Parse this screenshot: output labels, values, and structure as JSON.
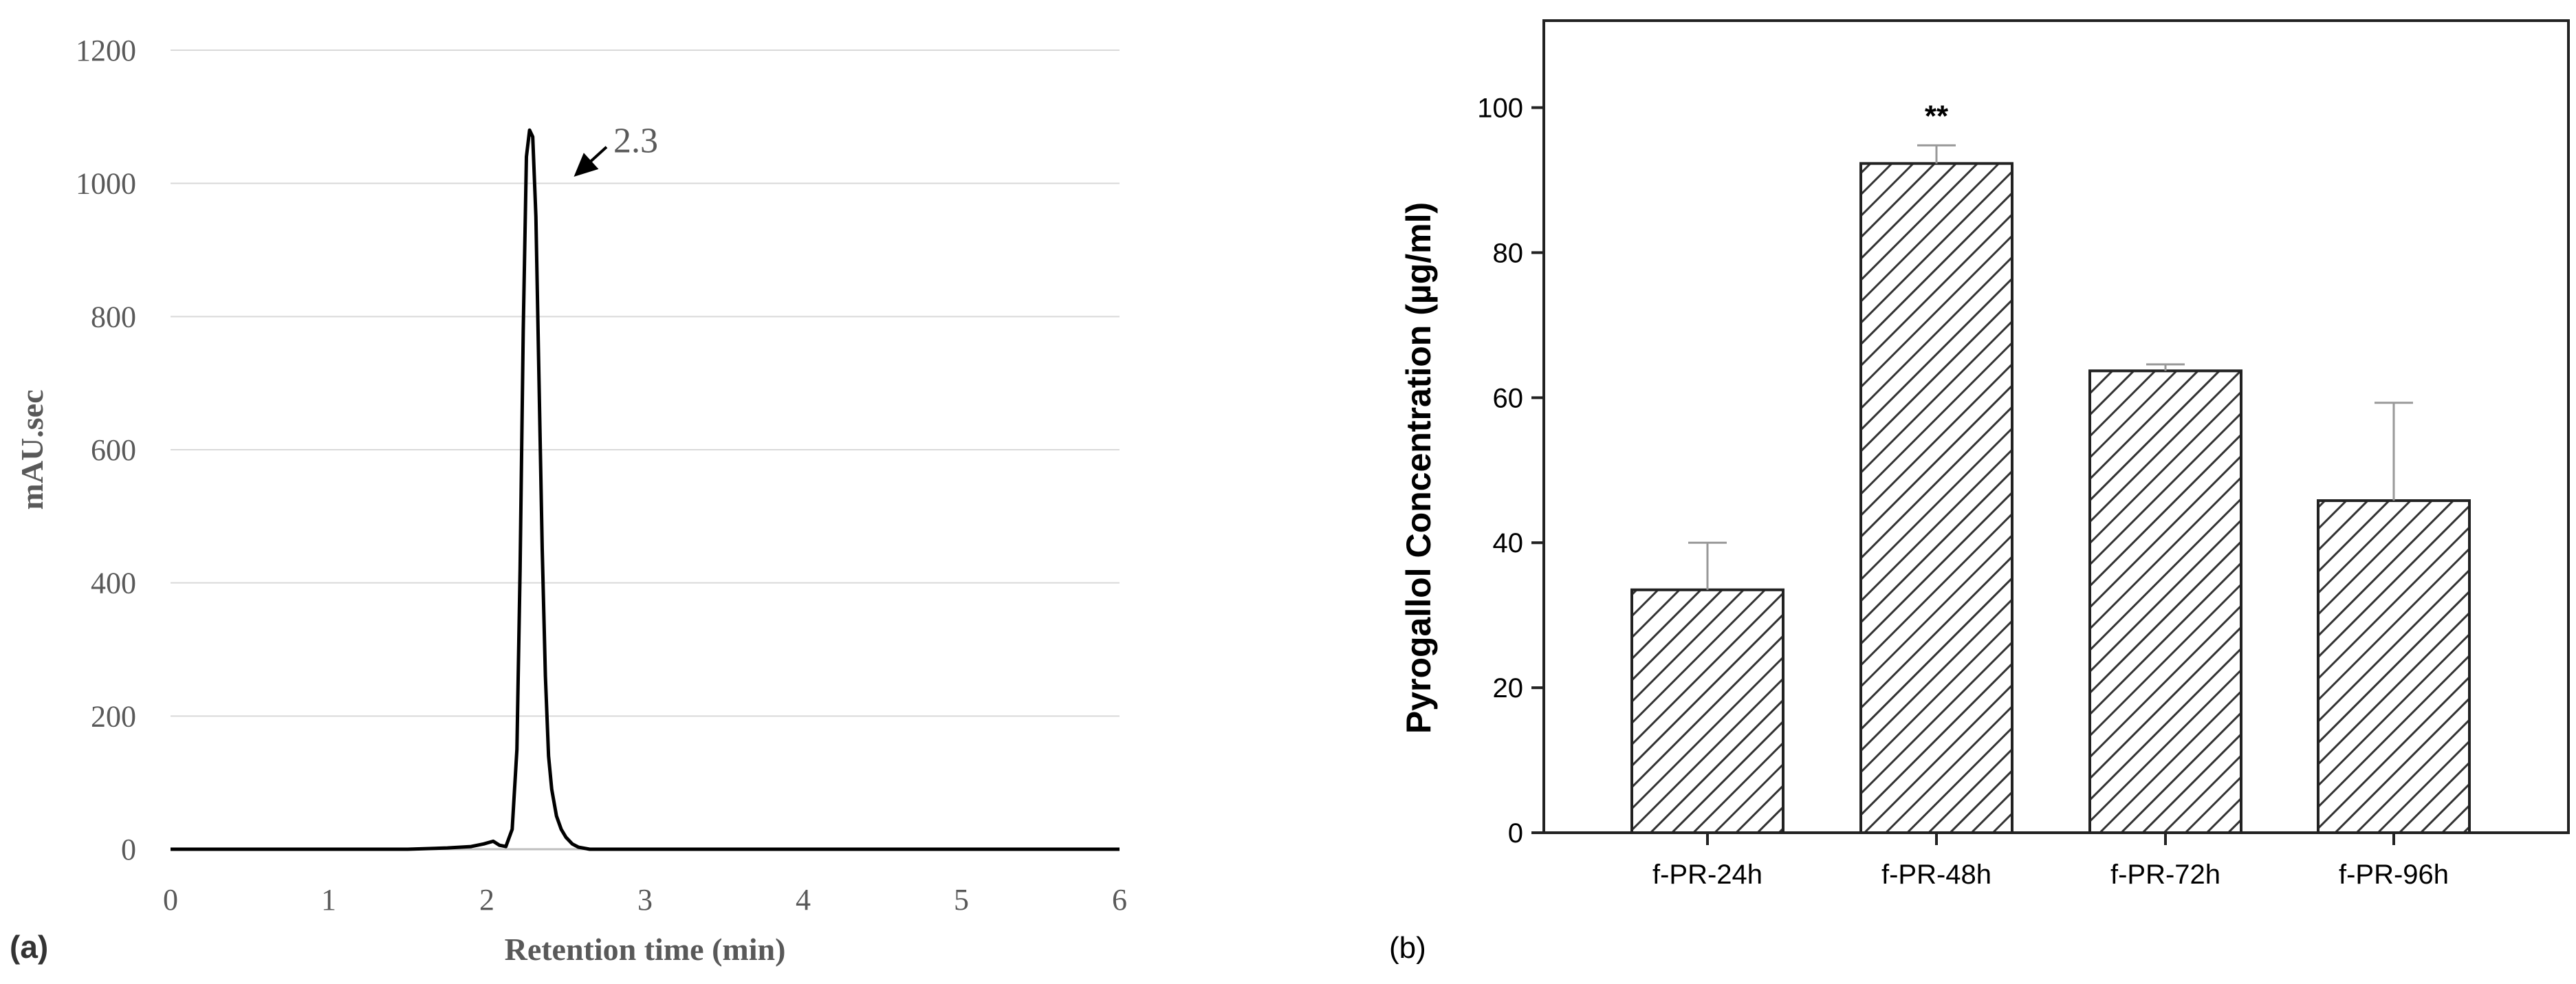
{
  "figure": {
    "panel_a_label": "(a)",
    "panel_b_label": "(b)"
  },
  "chart_data": [
    {
      "type": "line",
      "title": "",
      "xlabel": "Retention time (min)",
      "ylabel": "mAU.sec",
      "xlim": [
        0,
        6
      ],
      "ylim": [
        0,
        1200
      ],
      "xticks": [
        0,
        1,
        2,
        3,
        4,
        5,
        6
      ],
      "yticks": [
        0,
        200,
        400,
        600,
        800,
        1000,
        1200
      ],
      "grid": "horizontal",
      "annotation": {
        "text": "2.3",
        "arrow_to": [
          2.55,
          1010
        ],
        "label_at": [
          2.8,
          1065
        ]
      },
      "series": [
        {
          "color": "#000000",
          "x": [
            0.0,
            0.5,
            1.0,
            1.5,
            1.75,
            1.9,
            1.98,
            2.04,
            2.08,
            2.12,
            2.16,
            2.19,
            2.21,
            2.23,
            2.25,
            2.27,
            2.29,
            2.31,
            2.33,
            2.35,
            2.37,
            2.39,
            2.41,
            2.44,
            2.47,
            2.5,
            2.54,
            2.58,
            2.65,
            3.0,
            4.0,
            5.0,
            6.0
          ],
          "y": [
            0,
            0,
            0,
            0,
            2,
            4,
            8,
            12,
            6,
            4,
            30,
            150,
            420,
            780,
            1040,
            1080,
            1070,
            950,
            700,
            450,
            260,
            140,
            90,
            50,
            30,
            18,
            8,
            3,
            0,
            0,
            0,
            0,
            0
          ]
        }
      ]
    },
    {
      "type": "bar",
      "title": "",
      "xlabel": "",
      "ylabel": "Pyrogallol Concentration (µg/ml)",
      "ylim": [
        0,
        112
      ],
      "yticks": [
        0,
        20,
        40,
        60,
        80,
        100
      ],
      "grid": false,
      "categories": [
        "f-PR-24h",
        "f-PR-48h",
        "f-PR-72h",
        "f-PR-96h"
      ],
      "values": [
        33.5,
        92.3,
        63.7,
        45.8
      ],
      "error_upper": [
        40.0,
        94.8,
        64.6,
        59.3
      ],
      "annotations": [
        "",
        "**",
        "",
        ""
      ],
      "fill": "hatched"
    }
  ]
}
